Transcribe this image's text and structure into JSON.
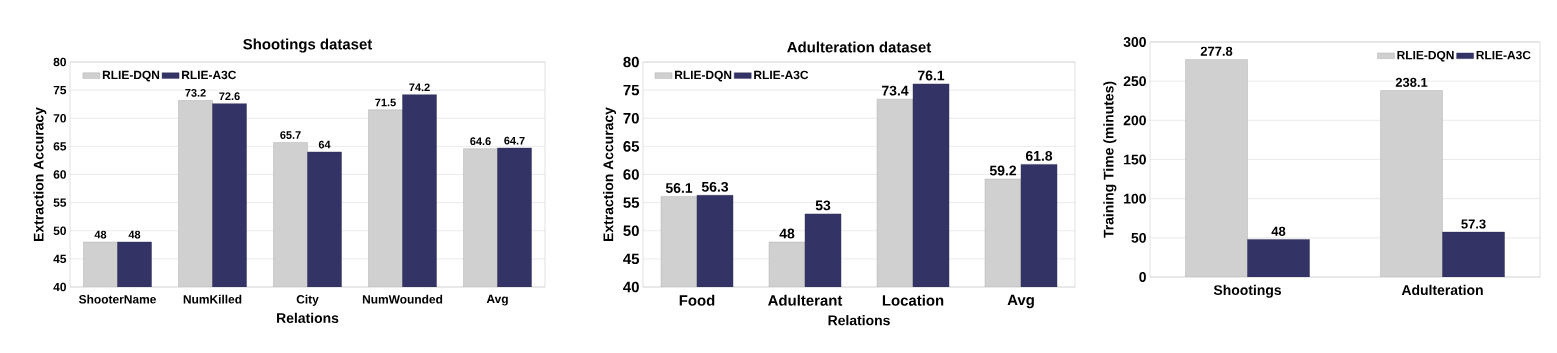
{
  "chart_data": [
    {
      "type": "bar",
      "title": "Shootings dataset",
      "xlabel": "Relations",
      "ylabel": "Extraction Accuracy",
      "categories": [
        "ShooterName",
        "NumKilled",
        "City",
        "NumWounded",
        "Avg"
      ],
      "series": [
        {
          "name": "RLIE-DQN",
          "color": "#d0d0d0",
          "values": [
            48,
            73.2,
            65.7,
            71.5,
            64.6
          ]
        },
        {
          "name": "RLIE-A3C",
          "color": "#333366",
          "values": [
            48,
            72.6,
            64,
            74.2,
            64.7
          ]
        }
      ],
      "ylim": [
        40,
        80
      ],
      "yticks": [
        40,
        45,
        50,
        55,
        60,
        65,
        70,
        75,
        80
      ],
      "grid": "y",
      "legend": "top left",
      "data_labels": true
    },
    {
      "type": "bar",
      "title": "Adulteration dataset",
      "xlabel": "Relations",
      "ylabel": "Extraction Accuracy",
      "categories": [
        "Food",
        "Adulterant",
        "Location",
        "Avg"
      ],
      "series": [
        {
          "name": "RLIE-DQN",
          "color": "#d0d0d0",
          "values": [
            56.1,
            48,
            73.4,
            59.2
          ]
        },
        {
          "name": "RLIE-A3C",
          "color": "#333366",
          "values": [
            56.3,
            53,
            76.1,
            61.8
          ]
        }
      ],
      "ylim": [
        40,
        80
      ],
      "yticks": [
        40,
        45,
        50,
        55,
        60,
        65,
        70,
        75,
        80
      ],
      "grid": "y",
      "legend": "top left",
      "data_labels": true
    },
    {
      "type": "bar",
      "ylabel": "Training Time (minutes)",
      "categories": [
        "Shootings",
        "Adulteration"
      ],
      "series": [
        {
          "name": "RLIE-DQN",
          "color": "#d0d0d0",
          "values": [
            277.8,
            238.1
          ]
        },
        {
          "name": "RLIE-A3C",
          "color": "#333366",
          "values": [
            48,
            57.3
          ]
        }
      ],
      "ylim": [
        0,
        300
      ],
      "yticks": [
        0,
        50,
        100,
        150,
        200,
        250,
        300
      ],
      "grid": "y",
      "legend": "top right",
      "data_labels": true
    }
  ]
}
